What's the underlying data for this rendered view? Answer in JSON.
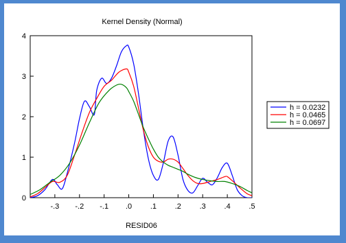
{
  "chart_data": {
    "type": "line",
    "title": "Kernel Density (Normal)",
    "xlabel": "RESID06",
    "ylabel": "",
    "xlim": [
      -0.4,
      0.5
    ],
    "ylim": [
      0,
      4
    ],
    "x_ticks": [
      -0.3,
      -0.2,
      -0.1,
      0.0,
      0.1,
      0.2,
      0.3,
      0.4,
      0.5
    ],
    "x_tick_labels": [
      "-.3",
      "-.2",
      "-.1",
      ".0",
      ".1",
      ".2",
      ".3",
      ".4",
      ".5"
    ],
    "y_ticks": [
      0,
      1,
      2,
      3,
      4
    ],
    "y_tick_labels": [
      "0",
      "1",
      "2",
      "3",
      "4"
    ],
    "grid": false,
    "legend_position": "right",
    "series": [
      {
        "name": "h =  0.0232",
        "color": "#0000ff",
        "x": [
          -0.4,
          -0.37,
          -0.34,
          -0.31,
          -0.29,
          -0.27,
          -0.25,
          -0.22,
          -0.2,
          -0.18,
          -0.16,
          -0.14,
          -0.13,
          -0.11,
          -0.09,
          -0.07,
          -0.05,
          -0.03,
          -0.01,
          0.0,
          0.02,
          0.04,
          0.06,
          0.08,
          0.1,
          0.12,
          0.14,
          0.16,
          0.18,
          0.2,
          0.22,
          0.24,
          0.26,
          0.28,
          0.3,
          0.32,
          0.34,
          0.36,
          0.38,
          0.4,
          0.42,
          0.44,
          0.46,
          0.48,
          0.5
        ],
        "values": [
          0.0,
          0.05,
          0.2,
          0.45,
          0.32,
          0.22,
          0.6,
          1.35,
          1.95,
          2.38,
          2.25,
          2.05,
          2.65,
          2.95,
          2.82,
          2.95,
          3.25,
          3.6,
          3.75,
          3.72,
          3.3,
          2.55,
          1.65,
          0.95,
          0.55,
          0.45,
          0.85,
          1.4,
          1.5,
          1.05,
          0.45,
          0.18,
          0.12,
          0.3,
          0.48,
          0.38,
          0.32,
          0.5,
          0.75,
          0.85,
          0.55,
          0.2,
          0.05,
          0.0,
          0.0
        ]
      },
      {
        "name": "h =  0.0465",
        "color": "#ff0000",
        "x": [
          -0.4,
          -0.37,
          -0.34,
          -0.31,
          -0.28,
          -0.25,
          -0.22,
          -0.19,
          -0.16,
          -0.13,
          -0.1,
          -0.07,
          -0.04,
          -0.01,
          0.0,
          0.02,
          0.04,
          0.06,
          0.08,
          0.1,
          0.12,
          0.14,
          0.16,
          0.18,
          0.2,
          0.22,
          0.24,
          0.26,
          0.28,
          0.3,
          0.33,
          0.36,
          0.39,
          0.4,
          0.42,
          0.45,
          0.48,
          0.5
        ],
        "values": [
          0.02,
          0.1,
          0.25,
          0.4,
          0.38,
          0.55,
          1.05,
          1.6,
          2.1,
          2.45,
          2.75,
          2.9,
          3.1,
          3.18,
          3.1,
          2.75,
          2.2,
          1.65,
          1.25,
          1.0,
          0.9,
          0.88,
          0.95,
          0.95,
          0.88,
          0.72,
          0.55,
          0.42,
          0.35,
          0.35,
          0.4,
          0.45,
          0.52,
          0.52,
          0.42,
          0.25,
          0.1,
          0.05
        ]
      },
      {
        "name": "h =  0.0697",
        "color": "#008000",
        "x": [
          -0.4,
          -0.36,
          -0.32,
          -0.28,
          -0.24,
          -0.2,
          -0.16,
          -0.12,
          -0.08,
          -0.05,
          -0.03,
          -0.01,
          0.0,
          0.02,
          0.04,
          0.06,
          0.08,
          0.1,
          0.12,
          0.14,
          0.16,
          0.18,
          0.2,
          0.22,
          0.24,
          0.27,
          0.3,
          0.33,
          0.36,
          0.39,
          0.42,
          0.45,
          0.48,
          0.5
        ],
        "values": [
          0.08,
          0.2,
          0.38,
          0.55,
          0.85,
          1.3,
          1.85,
          2.35,
          2.65,
          2.78,
          2.8,
          2.72,
          2.62,
          2.38,
          2.05,
          1.72,
          1.45,
          1.2,
          1.0,
          0.88,
          0.8,
          0.75,
          0.7,
          0.65,
          0.58,
          0.5,
          0.45,
          0.42,
          0.4,
          0.4,
          0.35,
          0.28,
          0.18,
          0.12
        ]
      }
    ]
  }
}
